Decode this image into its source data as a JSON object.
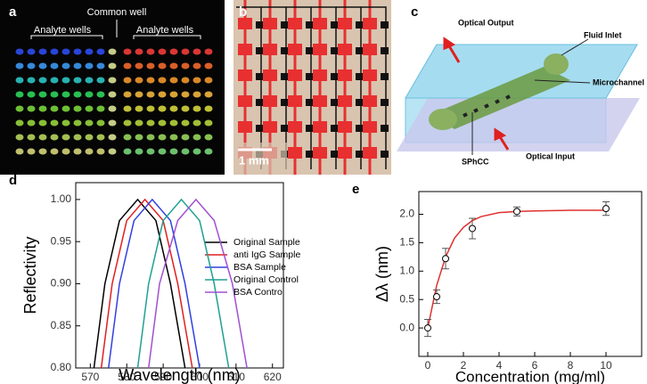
{
  "panels": {
    "a": {
      "label": "a",
      "common": "Common well",
      "left": "Analyte wells",
      "right": "Analyte wells"
    },
    "b": {
      "label": "b",
      "scale": "1 mm"
    },
    "c": {
      "label": "c",
      "output": "Optical Output",
      "inlet": "Fluid Inlet",
      "channel": "Microchannel",
      "sphcc": "SPhCC",
      "input": "Optical Input"
    }
  },
  "chart_data": [
    {
      "type": "line",
      "panel": "d",
      "xlabel": "Wavelength (nm)",
      "ylabel": "Reflectivity",
      "xlim": [
        566,
        623
      ],
      "ylim": [
        0.8,
        1.02
      ],
      "xticks": [
        570,
        580,
        590,
        600,
        610,
        620
      ],
      "yticks": [
        {
          "value": 0.8,
          "label": "0.80"
        },
        0.85,
        {
          "value": 0.9,
          "label": "0.90"
        },
        0.95,
        {
          "value": 1.0,
          "label": "1.00"
        }
      ],
      "legend": "lower right",
      "series": [
        {
          "name": "Original Sample",
          "color": "#000000",
          "x": [
            571,
            574,
            578,
            583,
            588,
            592,
            596
          ],
          "values": [
            0.8,
            0.9,
            0.975,
            1.0,
            0.975,
            0.9,
            0.8
          ]
        },
        {
          "name": "anti IgG Sample",
          "color": "#e02020",
          "x": [
            573,
            576,
            580,
            585,
            590,
            594,
            598
          ],
          "values": [
            0.8,
            0.9,
            0.975,
            1.0,
            0.975,
            0.9,
            0.8
          ]
        },
        {
          "name": "BSA Sample",
          "color": "#3040e0",
          "x": [
            575,
            578,
            582,
            587,
            592,
            596,
            600
          ],
          "values": [
            0.8,
            0.9,
            0.975,
            1.0,
            0.975,
            0.9,
            0.8
          ]
        },
        {
          "name": "Original Control",
          "color": "#20a090",
          "x": [
            583,
            586,
            590,
            595,
            600,
            604,
            608
          ],
          "values": [
            0.8,
            0.9,
            0.975,
            1.0,
            0.975,
            0.9,
            0.8
          ]
        },
        {
          "name": "BSA Control",
          "color": "#a050d0",
          "x": [
            586,
            589,
            594,
            599,
            604,
            609,
            613
          ],
          "values": [
            0.8,
            0.9,
            0.975,
            1.0,
            0.975,
            0.9,
            0.8
          ]
        }
      ]
    },
    {
      "type": "scatter",
      "panel": "e",
      "xlabel": "Concentration (mg/ml)",
      "ylabel": "Δλ (nm)",
      "xlim": [
        -0.5,
        12
      ],
      "ylim": [
        -0.5,
        2.4
      ],
      "xticks": [
        0,
        2,
        4,
        6,
        8,
        10
      ],
      "yticks": [
        {
          "value": 0,
          "label": "0.0"
        },
        0.5,
        {
          "value": 1,
          "label": "1.0"
        },
        1.5,
        {
          "value": 2,
          "label": "2.0"
        }
      ],
      "series": [
        {
          "color": "#000000",
          "x": [
            0,
            0.5,
            1,
            2.5,
            5,
            10
          ],
          "values": [
            0,
            0.55,
            1.22,
            1.75,
            2.05,
            2.1
          ],
          "errors": [
            0.15,
            0.12,
            0.18,
            0.18,
            0.08,
            0.12
          ]
        }
      ],
      "fit": {
        "color": "#e03030",
        "x": [
          0,
          0.5,
          1,
          1.5,
          2,
          2.5,
          3,
          4,
          5,
          6,
          8,
          10
        ],
        "values": [
          0,
          0.75,
          1.25,
          1.58,
          1.77,
          1.89,
          1.96,
          2.03,
          2.05,
          2.06,
          2.07,
          2.07
        ]
      }
    }
  ]
}
